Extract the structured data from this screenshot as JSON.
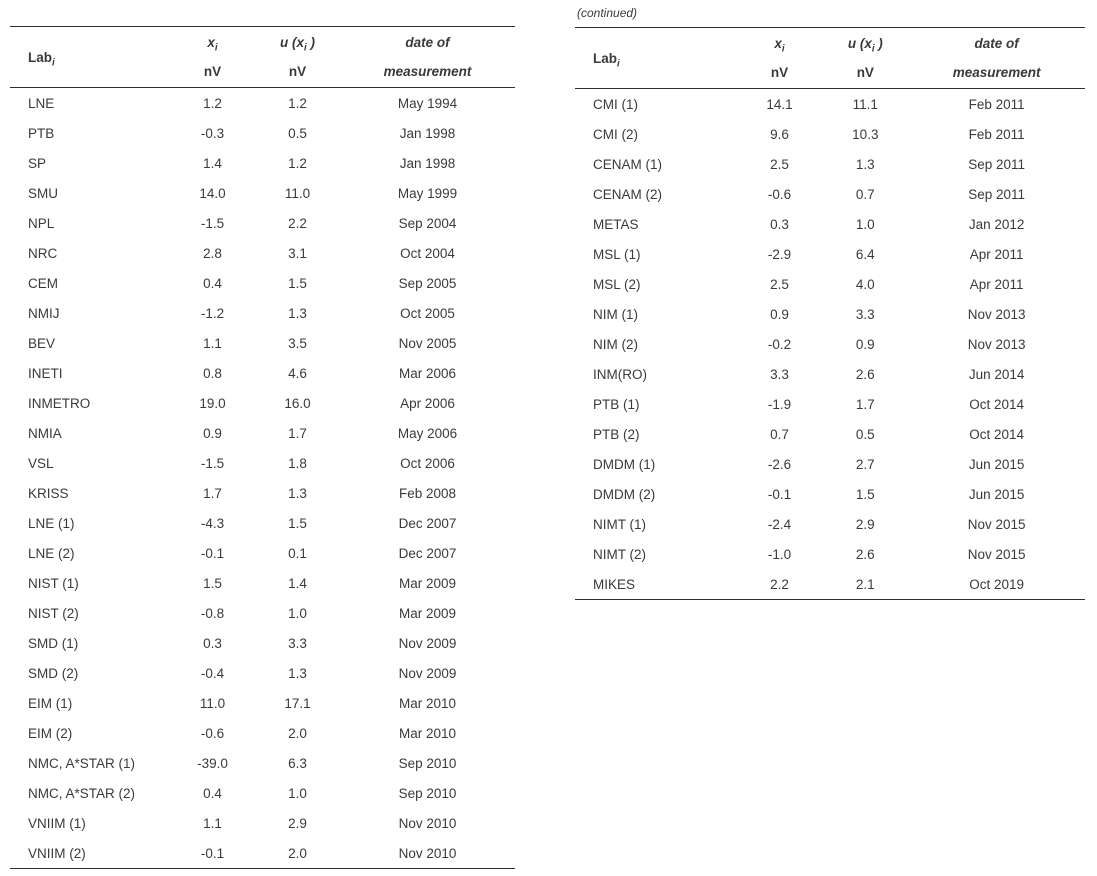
{
  "colors": {
    "background": "#ffffff",
    "text": "#3a3a3a",
    "rule": "#2f2f2f"
  },
  "continued_label": "(continued)",
  "header": {
    "lab_main": "Lab",
    "lab_sub": "i",
    "x_main": "x",
    "x_sub": "i",
    "u_main": "u (x",
    "u_sub": "i",
    "u_close": " )",
    "unit": "nV",
    "date_line1": "date of",
    "date_line2": "measurement"
  },
  "tables": [
    {
      "id": "left",
      "rows": [
        {
          "lab": "LNE",
          "x": "1.2",
          "u": "1.2",
          "date": "May 1994"
        },
        {
          "lab": "PTB",
          "x": "-0.3",
          "u": "0.5",
          "date": "Jan 1998"
        },
        {
          "lab": "SP",
          "x": "1.4",
          "u": "1.2",
          "date": "Jan 1998"
        },
        {
          "lab": "SMU",
          "x": "14.0",
          "u": "11.0",
          "date": "May 1999"
        },
        {
          "lab": "NPL",
          "x": "-1.5",
          "u": "2.2",
          "date": "Sep 2004"
        },
        {
          "lab": "NRC",
          "x": "2.8",
          "u": "3.1",
          "date": "Oct 2004"
        },
        {
          "lab": "CEM",
          "x": "0.4",
          "u": "1.5",
          "date": "Sep 2005"
        },
        {
          "lab": "NMIJ",
          "x": "-1.2",
          "u": "1.3",
          "date": "Oct 2005"
        },
        {
          "lab": "BEV",
          "x": "1.1",
          "u": "3.5",
          "date": "Nov 2005"
        },
        {
          "lab": "INETI",
          "x": "0.8",
          "u": "4.6",
          "date": "Mar 2006"
        },
        {
          "lab": "INMETRO",
          "x": "19.0",
          "u": "16.0",
          "date": "Apr 2006"
        },
        {
          "lab": "NMIA",
          "x": "0.9",
          "u": "1.7",
          "date": "May 2006"
        },
        {
          "lab": "VSL",
          "x": "-1.5",
          "u": "1.8",
          "date": "Oct 2006"
        },
        {
          "lab": "KRISS",
          "x": "1.7",
          "u": "1.3",
          "date": "Feb 2008"
        },
        {
          "lab": "LNE (1)",
          "x": "-4.3",
          "u": "1.5",
          "date": "Dec 2007"
        },
        {
          "lab": "LNE (2)",
          "x": "-0.1",
          "u": "0.1",
          "date": "Dec 2007"
        },
        {
          "lab": "NIST (1)",
          "x": "1.5",
          "u": "1.4",
          "date": "Mar 2009"
        },
        {
          "lab": "NIST (2)",
          "x": "-0.8",
          "u": "1.0",
          "date": "Mar 2009"
        },
        {
          "lab": "SMD (1)",
          "x": "0.3",
          "u": "3.3",
          "date": "Nov 2009"
        },
        {
          "lab": "SMD (2)",
          "x": "-0.4",
          "u": "1.3",
          "date": "Nov 2009"
        },
        {
          "lab": "EIM (1)",
          "x": "11.0",
          "u": "17.1",
          "date": "Mar 2010"
        },
        {
          "lab": "EIM (2)",
          "x": "-0.6",
          "u": "2.0",
          "date": "Mar 2010"
        },
        {
          "lab": "NMC, A*STAR (1)",
          "x": "-39.0",
          "u": "6.3",
          "date": "Sep 2010"
        },
        {
          "lab": "NMC, A*STAR (2)",
          "x": "0.4",
          "u": "1.0",
          "date": "Sep 2010"
        },
        {
          "lab": "VNIIM (1)",
          "x": "1.1",
          "u": "2.9",
          "date": "Nov 2010"
        },
        {
          "lab": "VNIIM (2)",
          "x": "-0.1",
          "u": "2.0",
          "date": "Nov 2010"
        }
      ]
    },
    {
      "id": "right",
      "rows": [
        {
          "lab": "CMI (1)",
          "x": "14.1",
          "u": "11.1",
          "date": "Feb 2011"
        },
        {
          "lab": "CMI (2)",
          "x": "9.6",
          "u": "10.3",
          "date": "Feb 2011"
        },
        {
          "lab": "CENAM (1)",
          "x": "2.5",
          "u": "1.3",
          "date": "Sep 2011"
        },
        {
          "lab": "CENAM (2)",
          "x": "-0.6",
          "u": "0.7",
          "date": "Sep 2011"
        },
        {
          "lab": "METAS",
          "x": "0.3",
          "u": "1.0",
          "date": "Jan 2012"
        },
        {
          "lab": "MSL (1)",
          "x": "-2.9",
          "u": "6.4",
          "date": "Apr 2011"
        },
        {
          "lab": "MSL (2)",
          "x": "2.5",
          "u": "4.0",
          "date": "Apr 2011"
        },
        {
          "lab": "NIM (1)",
          "x": "0.9",
          "u": "3.3",
          "date": "Nov 2013"
        },
        {
          "lab": "NIM (2)",
          "x": "-0.2",
          "u": "0.9",
          "date": "Nov 2013"
        },
        {
          "lab": "INM(RO)",
          "x": "3.3",
          "u": "2.6",
          "date": "Jun 2014"
        },
        {
          "lab": "PTB (1)",
          "x": "-1.9",
          "u": "1.7",
          "date": "Oct 2014"
        },
        {
          "lab": "PTB (2)",
          "x": "0.7",
          "u": "0.5",
          "date": "Oct 2014"
        },
        {
          "lab": "DMDM (1)",
          "x": "-2.6",
          "u": "2.7",
          "date": "Jun 2015"
        },
        {
          "lab": "DMDM (2)",
          "x": "-0.1",
          "u": "1.5",
          "date": "Jun 2015"
        },
        {
          "lab": "NIMT (1)",
          "x": "-2.4",
          "u": "2.9",
          "date": "Nov 2015"
        },
        {
          "lab": "NIMT (2)",
          "x": "-1.0",
          "u": "2.6",
          "date": "Nov 2015"
        },
        {
          "lab": "MIKES",
          "x": "2.2",
          "u": "2.1",
          "date": "Oct 2019"
        }
      ]
    }
  ]
}
